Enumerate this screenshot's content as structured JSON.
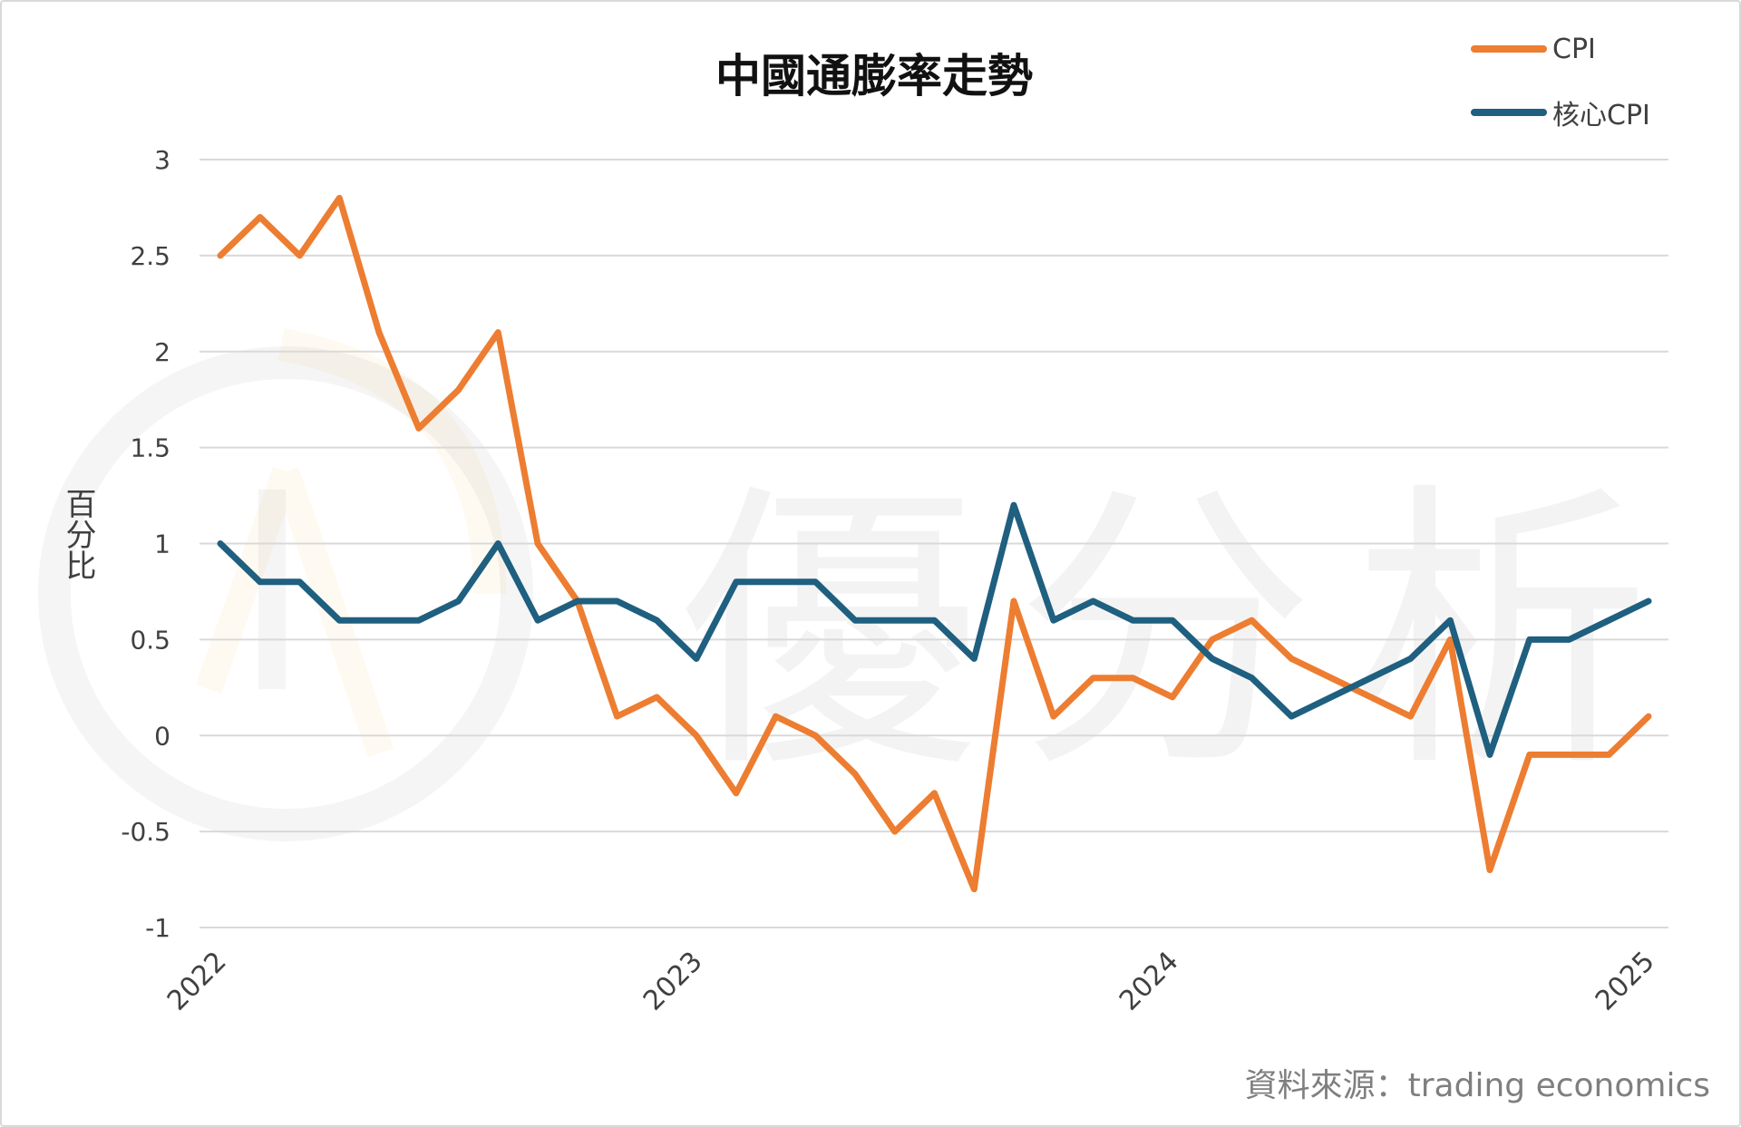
{
  "watermark": {
    "text": "優分析"
  },
  "legend": {
    "items": [
      {
        "label": "CPI",
        "color": "#ED7D31"
      },
      {
        "label": "核心CPI",
        "color": "#1F5F7F"
      }
    ]
  },
  "source": "資料來源：trading economics",
  "chart_data": {
    "type": "line",
    "title": "中國通膨率走勢",
    "xlabel": "",
    "ylabel": "百分比",
    "ylim": [
      -1,
      3
    ],
    "yticks": [
      "3",
      "2.5",
      "2",
      "1.5",
      "1",
      "0.5",
      "0",
      "-0.5",
      "-1"
    ],
    "ytick_values": [
      3,
      2.5,
      2,
      1.5,
      1,
      0.5,
      0,
      -0.5,
      -1
    ],
    "xticks": [
      "2022",
      "2023",
      "2024",
      "2025"
    ],
    "xtick_index": [
      0,
      12,
      24,
      36
    ],
    "grid": true,
    "legend_position": "top-right",
    "series": [
      {
        "name": "CPI",
        "color": "#ED7D31",
        "values": [
          2.5,
          2.7,
          2.5,
          2.8,
          2.1,
          1.6,
          1.8,
          2.1,
          1.0,
          0.7,
          0.1,
          0.2,
          0.0,
          -0.3,
          0.1,
          0.0,
          -0.2,
          -0.5,
          -0.3,
          -0.8,
          0.7,
          0.1,
          0.3,
          0.3,
          0.2,
          0.5,
          0.6,
          0.4,
          0.3,
          0.2,
          0.1,
          0.5,
          -0.7,
          -0.1,
          -0.1,
          -0.1,
          0.1
        ]
      },
      {
        "name": "核心CPI",
        "color": "#1F5F7F",
        "values": [
          1.0,
          0.8,
          0.8,
          0.6,
          0.6,
          0.6,
          0.7,
          1.0,
          0.6,
          0.7,
          0.7,
          0.6,
          0.4,
          0.8,
          0.8,
          0.8,
          0.6,
          0.6,
          0.6,
          0.4,
          1.2,
          0.6,
          0.7,
          0.6,
          0.6,
          0.4,
          0.3,
          0.1,
          0.2,
          0.3,
          0.4,
          0.6,
          -0.1,
          0.5,
          0.5,
          0.6,
          0.7
        ]
      }
    ]
  }
}
